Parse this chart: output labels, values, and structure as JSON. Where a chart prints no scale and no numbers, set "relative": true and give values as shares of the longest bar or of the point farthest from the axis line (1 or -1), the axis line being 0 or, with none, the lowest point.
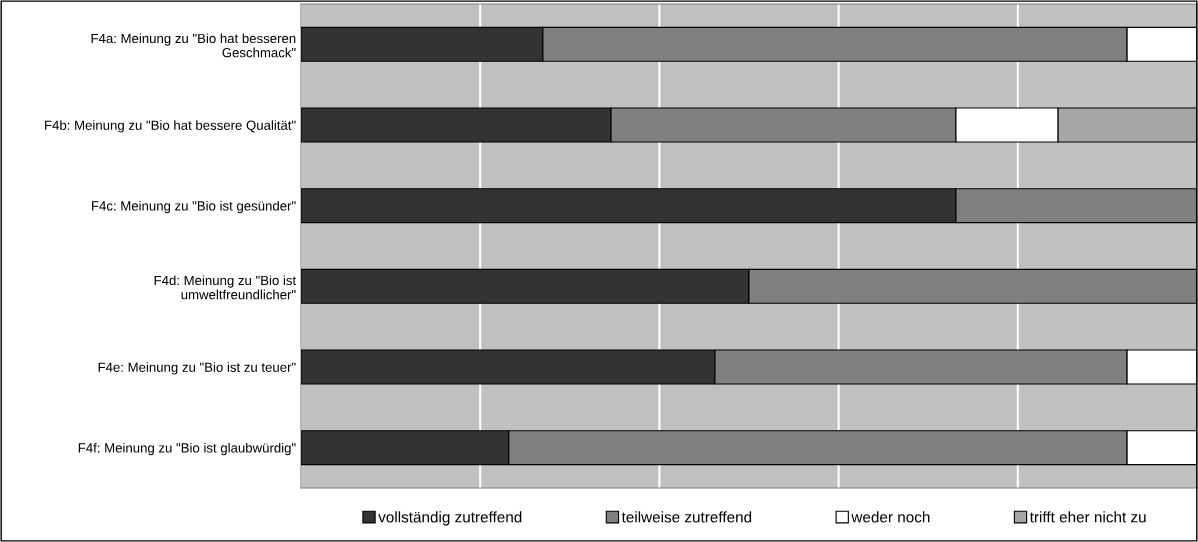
{
  "chart_data": {
    "type": "bar",
    "orientation": "horizontal",
    "stacked": true,
    "relative": true,
    "grid": "x",
    "legend": "bottom",
    "categories": [
      "F4a: Meinung zu \"Bio hat besseren\nGeschmack\"",
      "F4b: Meinung zu \"Bio hat bessere Qualität\"",
      "F4c: Meinung zu \"Bio ist gesünder\"",
      "F4d: Meinung zu \"Bio ist\numweltfreundlicher\"",
      "F4e: Meinung zu \"Bio ist zu teuer\"",
      "F4f: Meinung zu \"Bio ist glaubwürdig\""
    ],
    "series": [
      {
        "name": "vollständig zutreffend",
        "color": "#333333",
        "values": [
          0.27,
          0.346,
          0.731,
          0.5,
          0.462,
          0.232
        ]
      },
      {
        "name": "teilweise zutreffend",
        "color": "#808080",
        "values": [
          0.652,
          0.385,
          0.269,
          0.5,
          0.46,
          0.69
        ]
      },
      {
        "name": "weder noch",
        "color": "#ffffff",
        "values": [
          0.078,
          0.114,
          null,
          null,
          0.078,
          0.078
        ]
      },
      {
        "name": "trifft eher nicht zu",
        "color": "#a6a6a6",
        "values": [
          null,
          0.155,
          null,
          null,
          null,
          null
        ]
      }
    ]
  }
}
